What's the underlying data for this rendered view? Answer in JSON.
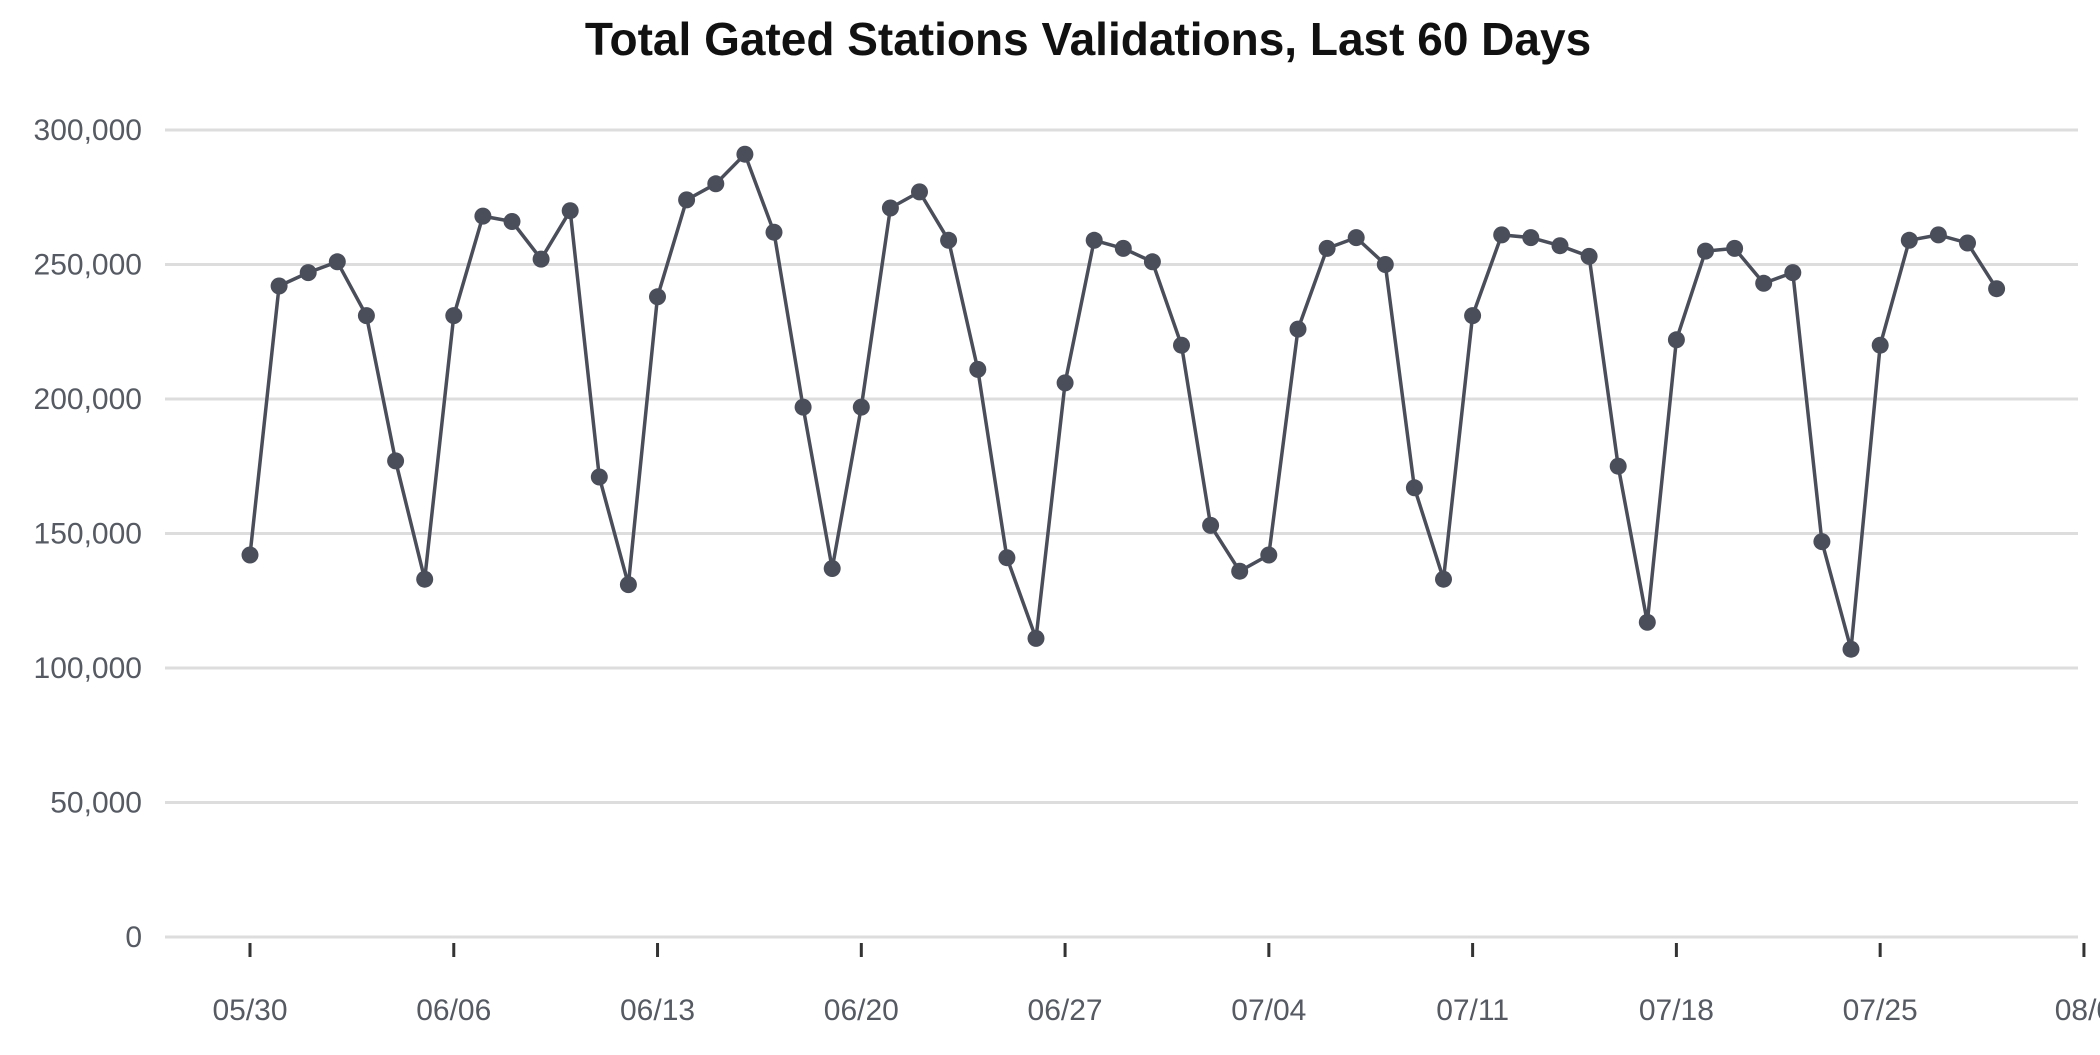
{
  "chart_data": {
    "type": "line",
    "title": "Total Gated Stations Validations, Last 60 Days",
    "xlabel": "",
    "ylabel": "",
    "ylim": [
      0,
      300000
    ],
    "yticks": [
      0,
      50000,
      100000,
      150000,
      200000,
      250000,
      300000
    ],
    "ytick_labels": [
      "0",
      "50,000",
      "100,000",
      "150,000",
      "200,000",
      "250,000",
      "300,000"
    ],
    "xticks": [
      "05/30",
      "06/06",
      "06/13",
      "06/20",
      "06/27",
      "07/04",
      "07/11",
      "07/18",
      "07/25",
      "08/0"
    ],
    "grid": true,
    "legend": "none",
    "line_color": "#4a4e5a",
    "marker_color": "#4a4e5a",
    "series": [
      {
        "x": [
          "05/30",
          "05/31",
          "06/01",
          "06/02",
          "06/03",
          "06/04",
          "06/05",
          "06/06",
          "06/07",
          "06/08",
          "06/09",
          "06/10",
          "06/11",
          "06/12",
          "06/13",
          "06/14",
          "06/15",
          "06/16",
          "06/17",
          "06/18",
          "06/19",
          "06/20",
          "06/21",
          "06/22",
          "06/23",
          "06/24",
          "06/25",
          "06/26",
          "06/27",
          "06/28",
          "06/29",
          "06/30",
          "07/01",
          "07/02",
          "07/03",
          "07/04",
          "07/05",
          "07/06",
          "07/07",
          "07/08",
          "07/09",
          "07/10",
          "07/11",
          "07/12",
          "07/13",
          "07/14",
          "07/15",
          "07/16",
          "07/17",
          "07/18",
          "07/19",
          "07/20",
          "07/21",
          "07/22",
          "07/23",
          "07/24",
          "07/25",
          "07/26",
          "07/27",
          "07/28",
          "07/29"
        ],
        "values": [
          142000,
          242000,
          247000,
          251000,
          231000,
          177000,
          133000,
          231000,
          268000,
          266000,
          252000,
          270000,
          171000,
          131000,
          238000,
          274000,
          280000,
          291000,
          262000,
          197000,
          137000,
          197000,
          271000,
          277000,
          259000,
          211000,
          141000,
          111000,
          206000,
          259000,
          256000,
          251000,
          220000,
          153000,
          136000,
          142000,
          226000,
          256000,
          260000,
          250000,
          167000,
          133000,
          231000,
          261000,
          260000,
          257000,
          253000,
          175000,
          117000,
          222000,
          255000,
          256000,
          243000,
          247000,
          147000,
          107000,
          220000,
          259000,
          261000,
          258000,
          241000
        ]
      }
    ]
  }
}
